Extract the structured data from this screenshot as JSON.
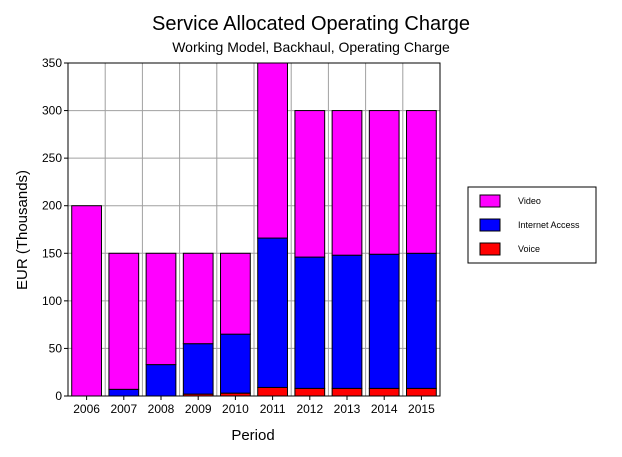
{
  "chart_data": {
    "type": "bar",
    "stacked": true,
    "title": "Service Allocated Operating Charge",
    "subtitle": "Working Model, Backhaul, Operating Charge",
    "xlabel": "Period",
    "ylabel": "EUR (Thousands)",
    "ylim": [
      0,
      350
    ],
    "yticks": [
      0,
      50,
      100,
      150,
      200,
      250,
      300,
      350
    ],
    "grid": true,
    "legend_position": "right",
    "categories": [
      "2006",
      "2007",
      "2008",
      "2009",
      "2010",
      "2011",
      "2012",
      "2013",
      "2014",
      "2015"
    ],
    "series": [
      {
        "name": "Voice",
        "color": "#ff0000",
        "values": [
          0,
          0,
          0,
          2,
          3,
          9,
          8,
          8,
          8,
          8
        ]
      },
      {
        "name": "Internet Access",
        "color": "#0000ff",
        "values": [
          0,
          7,
          33,
          53,
          62,
          157,
          138,
          140,
          141,
          142
        ]
      },
      {
        "name": "Video",
        "color": "#ff00ff",
        "values": [
          200,
          143,
          117,
          95,
          85,
          184,
          154,
          152,
          151,
          150
        ]
      }
    ],
    "legend_order": [
      "Video",
      "Internet Access",
      "Voice"
    ]
  }
}
